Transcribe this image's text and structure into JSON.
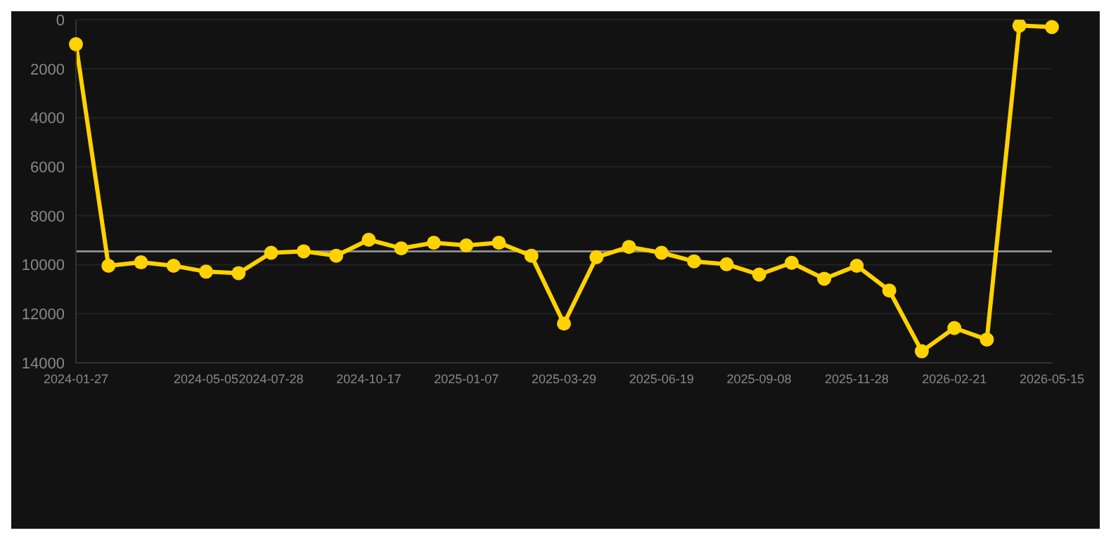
{
  "chart_data": {
    "type": "line",
    "categories": [
      "2024-01-27",
      null,
      null,
      null,
      "2024-05-05",
      null,
      "2024-07-28",
      null,
      null,
      "2024-10-17",
      null,
      null,
      "2025-01-07",
      null,
      null,
      "2025-03-29",
      null,
      null,
      "2025-06-19",
      null,
      null,
      "2025-09-08",
      null,
      null,
      "2025-11-28",
      null,
      null,
      "2026-02-21",
      null,
      null,
      "2026-05-15"
    ],
    "series": [
      {
        "color": "#ffd200",
        "values": [
          1000,
          10040,
          9900,
          10040,
          10280,
          10340,
          9510,
          9450,
          9630,
          8980,
          9330,
          9100,
          9210,
          9100,
          9630,
          12400,
          9690,
          9270,
          9510,
          9860,
          9980,
          10400,
          9920,
          10570,
          10040,
          11050,
          13530,
          12580,
          13050,
          240,
          300
        ]
      }
    ],
    "ylim": [
      14000,
      0
    ],
    "yticks": [
      0,
      2000,
      4000,
      6000,
      8000,
      10000,
      12000,
      14000
    ],
    "ref_lines": [
      {
        "axis": "y",
        "value": 9450,
        "color": "#888888"
      }
    ],
    "grid": "y",
    "marker": "circle",
    "line_style": "solid"
  }
}
